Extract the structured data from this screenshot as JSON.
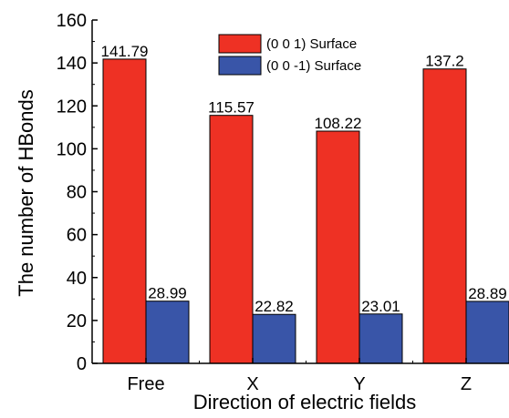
{
  "chart_data": {
    "type": "bar",
    "xlabel": "Direction of electric fields",
    "ylabel": "The number of HBonds",
    "categories": [
      "Free",
      "X",
      "Y",
      "Z"
    ],
    "series": [
      {
        "name": "(0 0 1) Surface",
        "values": [
          141.79,
          115.57,
          108.22,
          137.2
        ],
        "labels": [
          "141.79",
          "115.57",
          "108.22",
          "137.2"
        ],
        "color": "#ee3124"
      },
      {
        "name": "(0 0 -1) Surface",
        "values": [
          28.99,
          22.82,
          23.01,
          28.89
        ],
        "labels": [
          "28.99",
          "22.82",
          "23.01",
          "28.89"
        ],
        "color": "#3955a8"
      }
    ],
    "ylim": [
      0,
      160
    ],
    "yticks": [
      0,
      20,
      40,
      60,
      80,
      100,
      120,
      140,
      160
    ],
    "grid": false,
    "legend_position": "top-center"
  }
}
